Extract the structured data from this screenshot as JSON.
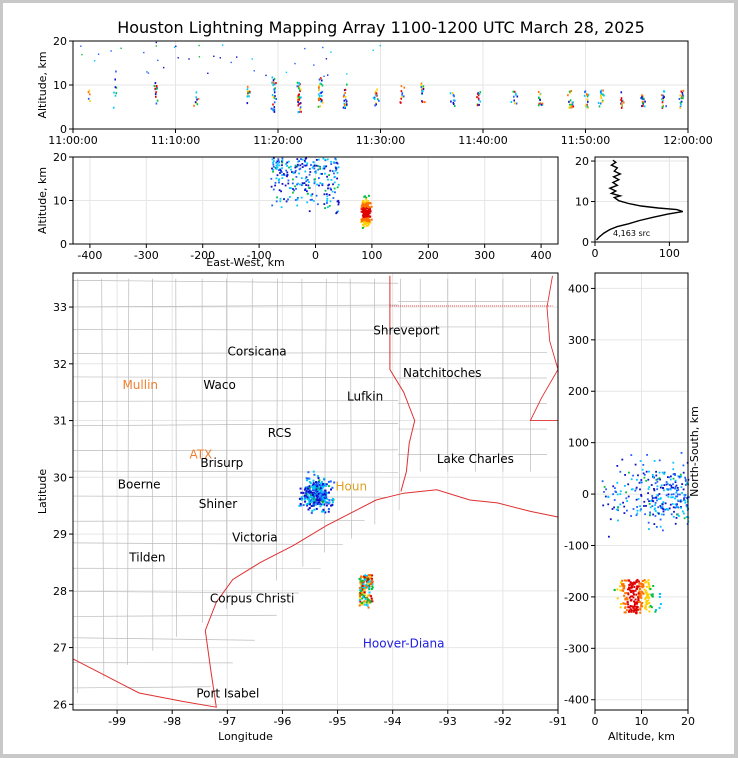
{
  "chart_data": [
    {
      "id": "time-altitude",
      "type": "scatter",
      "title": "Houston Lightning Mapping Array 1100-1200 UTC March 28, 2025",
      "xlabel": "",
      "ylabel": "Altitude, km",
      "xlim": [
        "11:00:00",
        "12:00:00"
      ],
      "ylim": [
        0,
        20
      ],
      "xticks": [
        "11:00:00",
        "11:10:00",
        "11:20:00",
        "11:30:00",
        "11:40:00",
        "11:50:00",
        "12:00:00"
      ],
      "yticks": [
        0,
        10,
        20
      ],
      "grid": true,
      "clusters": [
        {
          "t": 1.5,
          "alt_lo": 6,
          "alt_hi": 9,
          "n": 5
        },
        {
          "t": 4,
          "alt_lo": 5,
          "alt_hi": 16,
          "n": 8
        },
        {
          "t": 8,
          "alt_lo": 6,
          "alt_hi": 11,
          "n": 14
        },
        {
          "t": 12,
          "alt_lo": 5,
          "alt_hi": 9,
          "n": 8
        },
        {
          "t": 17,
          "alt_lo": 6,
          "alt_hi": 10,
          "n": 12
        },
        {
          "t": 19.5,
          "alt_lo": 4,
          "alt_hi": 12,
          "n": 30
        },
        {
          "t": 22,
          "alt_lo": 4,
          "alt_hi": 11,
          "n": 35
        },
        {
          "t": 24,
          "alt_lo": 5,
          "alt_hi": 12,
          "n": 30
        },
        {
          "t": 26.5,
          "alt_lo": 5,
          "alt_hi": 11,
          "n": 20
        },
        {
          "t": 29.5,
          "alt_lo": 5,
          "alt_hi": 10,
          "n": 14
        },
        {
          "t": 32,
          "alt_lo": 6,
          "alt_hi": 10,
          "n": 10
        },
        {
          "t": 34,
          "alt_lo": 6,
          "alt_hi": 11,
          "n": 16
        },
        {
          "t": 37,
          "alt_lo": 5,
          "alt_hi": 9,
          "n": 10
        },
        {
          "t": 39.5,
          "alt_lo": 5,
          "alt_hi": 9,
          "n": 12
        },
        {
          "t": 43,
          "alt_lo": 6,
          "alt_hi": 9,
          "n": 10
        },
        {
          "t": 45.5,
          "alt_lo": 5,
          "alt_hi": 9,
          "n": 14
        },
        {
          "t": 48.5,
          "alt_lo": 5,
          "alt_hi": 9,
          "n": 18
        },
        {
          "t": 50,
          "alt_lo": 5,
          "alt_hi": 9,
          "n": 18
        },
        {
          "t": 51.5,
          "alt_lo": 5,
          "alt_hi": 9,
          "n": 16
        },
        {
          "t": 53.5,
          "alt_lo": 5,
          "alt_hi": 9,
          "n": 14
        },
        {
          "t": 55.5,
          "alt_lo": 5,
          "alt_hi": 8,
          "n": 16
        },
        {
          "t": 57.5,
          "alt_lo": 5,
          "alt_hi": 9,
          "n": 16
        },
        {
          "t": 59.3,
          "alt_lo": 5,
          "alt_hi": 9,
          "n": 18
        }
      ]
    },
    {
      "id": "east-west-altitude",
      "type": "scatter",
      "xlabel": "East-West, km",
      "ylabel": "Altitude, km",
      "xlim": [
        -430,
        430
      ],
      "ylim": [
        0,
        20
      ],
      "xticks": [
        -400,
        -300,
        -200,
        -100,
        0,
        100,
        200,
        300,
        400
      ],
      "yticks": [
        0,
        10,
        20
      ],
      "grid": true,
      "clusters": [
        {
          "x_lo": -80,
          "x_hi": 40,
          "alt_lo": 7,
          "alt_hi": 20,
          "n": 260
        },
        {
          "x_lo": 75,
          "x_hi": 100,
          "alt_lo": 3,
          "alt_hi": 14,
          "n": 180
        }
      ]
    },
    {
      "id": "altitude-histogram",
      "type": "line",
      "xlim": [
        0,
        125
      ],
      "ylim": [
        0,
        21
      ],
      "xticks": [
        0,
        100
      ],
      "yticks": [
        0,
        10,
        20
      ],
      "grid": true,
      "annotation": "4,163 src",
      "points": [
        [
          2,
          0.5
        ],
        [
          6,
          1.3
        ],
        [
          12,
          2.2
        ],
        [
          20,
          3.1
        ],
        [
          30,
          3.8
        ],
        [
          45,
          4.5
        ],
        [
          60,
          5.3
        ],
        [
          78,
          6.1
        ],
        [
          98,
          6.9
        ],
        [
          118,
          7.5
        ],
        [
          110,
          8.0
        ],
        [
          85,
          8.4
        ],
        [
          62,
          8.9
        ],
        [
          45,
          9.5
        ],
        [
          32,
          10.2
        ],
        [
          26,
          11.0
        ],
        [
          34,
          11.4
        ],
        [
          22,
          12.0
        ],
        [
          28,
          12.6
        ],
        [
          20,
          13.3
        ],
        [
          30,
          14.0
        ],
        [
          24,
          14.7
        ],
        [
          32,
          15.4
        ],
        [
          25,
          16.1
        ],
        [
          34,
          16.8
        ],
        [
          26,
          17.5
        ],
        [
          30,
          18.3
        ],
        [
          22,
          19.0
        ],
        [
          28,
          19.7
        ],
        [
          24,
          20.2
        ]
      ]
    },
    {
      "id": "plan-view",
      "type": "scatter",
      "xlabel": "Longitude",
      "ylabel": "Latitude",
      "xlim": [
        -99.8,
        -91.0
      ],
      "ylim": [
        25.9,
        33.6
      ],
      "xticks": [
        -99,
        -98,
        -97,
        -96,
        -95,
        -94,
        -93,
        -92,
        -91
      ],
      "yticks": [
        26,
        27,
        28,
        29,
        30,
        31,
        32,
        33
      ],
      "grid": true,
      "labels": [
        {
          "text": "Shreveport",
          "lon": -93.75,
          "lat": 32.52,
          "color": "#000000"
        },
        {
          "text": "Corsicana",
          "lon": -96.46,
          "lat": 32.15,
          "color": "#000000"
        },
        {
          "text": "Natchitoches",
          "lon": -93.1,
          "lat": 31.77,
          "color": "#000000"
        },
        {
          "text": "Mullin",
          "lon": -98.58,
          "lat": 31.56,
          "color": "#f08030"
        },
        {
          "text": "Waco",
          "lon": -97.14,
          "lat": 31.56,
          "color": "#000000"
        },
        {
          "text": "Lufkin",
          "lon": -94.5,
          "lat": 31.35,
          "color": "#000000"
        },
        {
          "text": "RCS",
          "lon": -96.05,
          "lat": 30.71,
          "color": "#000000"
        },
        {
          "text": "ATX",
          "lon": -97.48,
          "lat": 30.33,
          "color": "#f08030"
        },
        {
          "text": "Lake Charles",
          "lon": -92.5,
          "lat": 30.25,
          "color": "#000000"
        },
        {
          "text": "Brisurp",
          "lon": -97.1,
          "lat": 30.18,
          "color": "#000000"
        },
        {
          "text": "Boerne",
          "lon": -98.6,
          "lat": 29.8,
          "color": "#000000"
        },
        {
          "text": "Houn",
          "lon": -94.75,
          "lat": 29.77,
          "color": "#e0a020"
        },
        {
          "text": "Shiner",
          "lon": -97.17,
          "lat": 29.46,
          "color": "#000000"
        },
        {
          "text": "Victoria",
          "lon": -96.5,
          "lat": 28.87,
          "color": "#000000"
        },
        {
          "text": "Tilden",
          "lon": -98.45,
          "lat": 28.52,
          "color": "#000000"
        },
        {
          "text": "Corpus Christi",
          "lon": -96.55,
          "lat": 27.79,
          "color": "#000000"
        },
        {
          "text": "Hoover-Diana",
          "lon": -93.8,
          "lat": 27.0,
          "color": "#2020e0"
        },
        {
          "text": "Port Isabel",
          "lon": -96.99,
          "lat": 26.12,
          "color": "#000000"
        }
      ],
      "clusters": [
        {
          "lon_lo": -95.8,
          "lon_hi": -95.0,
          "lat_lo": 29.3,
          "lat_hi": 30.15,
          "n": 340
        },
        {
          "lon_lo": -94.62,
          "lon_hi": -94.38,
          "lat_lo": 27.72,
          "lat_hi": 28.3,
          "n": 160
        }
      ]
    },
    {
      "id": "altitude-north-south",
      "type": "scatter",
      "xlabel": "Altitude, km",
      "ylabel": "North-South, km",
      "xlim": [
        0,
        20
      ],
      "ylim": [
        -420,
        430
      ],
      "xticks": [
        0,
        10,
        20
      ],
      "yticks": [
        -400,
        -300,
        -200,
        -100,
        0,
        100,
        200,
        300,
        400
      ],
      "grid": true,
      "clusters": [
        {
          "alt_lo": 1,
          "alt_hi": 20,
          "ns_lo": -90,
          "ns_hi": 90,
          "n": 300
        },
        {
          "alt_lo": 4,
          "alt_hi": 16,
          "ns_lo": -230,
          "ns_hi": -165,
          "n": 220
        }
      ]
    }
  ],
  "colors": {
    "axis": "#000000",
    "grid": "#e6e6e6",
    "county_lines": "#bbbbbb",
    "coast_state": "#e03030",
    "point_scale": [
      "#1010c8",
      "#2060ff",
      "#00c8ff",
      "#00c040",
      "#ffd000",
      "#ff7000",
      "#e00000"
    ]
  }
}
